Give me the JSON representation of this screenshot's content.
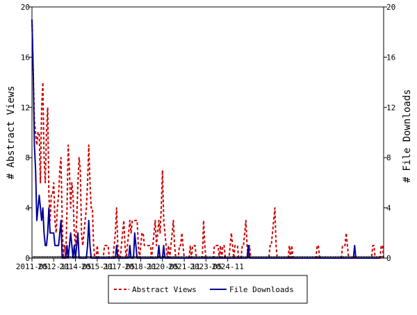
{
  "chart_data": {
    "type": "line",
    "title": "",
    "xlabel": "",
    "ylabel": "# Abstract Views",
    "y2label": "# File Downloads",
    "ylim": [
      0,
      20
    ],
    "y2lim": [
      0,
      20
    ],
    "yticks": [
      0,
      4,
      8,
      12,
      16,
      20
    ],
    "y2ticks": [
      0,
      4,
      8,
      12,
      16,
      20
    ],
    "x_tick_labels": [
      "2011-05",
      "2012-11",
      "2014-05",
      "2015-11",
      "2017-05",
      "2018-11",
      "2020-05",
      "2021-11",
      "2023-05",
      "2024-11"
    ],
    "x_start": "2011-05",
    "x_end": "2025-09",
    "grid": false,
    "legend_position": "bottom",
    "colors": {
      "abstract_views": "#cc0000",
      "file_downloads": "#000099"
    },
    "series": [
      {
        "name": "Abstract Views",
        "axis": "left",
        "style": "dashed",
        "values": [
          19,
          15,
          11,
          10,
          9,
          10,
          10,
          6,
          12,
          14,
          8,
          6,
          10,
          12,
          5,
          3,
          5,
          5,
          6,
          3,
          2,
          4,
          5,
          7,
          8,
          3,
          0,
          1,
          0,
          4,
          9,
          7,
          4,
          6,
          5,
          2,
          1,
          3,
          6,
          8,
          7,
          2,
          1,
          2,
          3,
          4,
          6,
          9,
          6,
          4,
          4,
          1,
          0,
          0,
          1,
          0,
          0,
          0,
          0,
          0,
          1,
          1,
          1,
          1,
          0,
          0,
          0,
          0,
          1,
          2,
          4,
          1,
          0,
          0,
          1,
          2,
          3,
          1,
          0,
          1,
          2,
          3,
          2,
          3,
          3,
          3,
          3,
          3,
          1,
          0,
          1,
          2,
          2,
          1,
          1,
          1,
          1,
          1,
          1,
          0,
          1,
          2,
          3,
          1,
          2,
          3,
          2,
          4,
          7,
          3,
          2,
          1,
          0,
          1,
          0,
          1,
          2,
          3,
          1,
          0,
          0,
          0,
          1,
          1,
          2,
          1,
          0,
          0,
          0,
          0,
          0,
          1,
          0,
          1,
          1,
          1,
          0,
          0,
          0,
          0,
          0,
          0,
          3,
          1,
          0,
          0,
          0,
          0,
          0,
          0,
          0,
          1,
          1,
          1,
          1,
          0,
          1,
          0,
          1,
          1,
          0,
          0,
          0,
          0,
          1,
          2,
          1,
          0,
          1,
          1,
          1,
          0,
          0,
          0,
          1,
          1,
          2,
          3,
          1,
          0,
          1,
          0,
          0,
          0,
          0,
          0,
          0,
          0,
          0,
          0,
          0,
          0,
          0,
          0,
          0,
          0,
          0,
          1,
          1,
          2,
          3,
          4,
          1,
          0,
          0,
          0,
          0,
          0,
          0,
          0,
          0,
          0,
          0,
          1,
          0,
          1,
          0,
          0,
          0,
          0,
          0,
          0,
          0,
          0,
          0,
          0,
          0,
          0,
          0,
          0,
          0,
          0,
          0,
          0,
          0,
          0,
          1,
          1,
          0,
          0,
          0,
          0,
          0,
          0,
          0,
          0,
          0,
          0,
          0,
          0,
          0,
          0,
          0,
          0,
          0,
          0,
          0,
          1,
          1,
          1,
          2,
          1,
          0,
          0,
          0,
          0,
          0,
          0,
          0,
          0,
          0,
          0,
          0,
          0,
          0,
          0,
          0,
          0,
          0,
          0,
          0,
          0,
          1,
          1,
          0,
          0,
          0,
          0,
          0,
          1,
          1,
          0
        ]
      },
      {
        "name": "File Downloads",
        "axis": "right",
        "style": "solid",
        "values": [
          19,
          15,
          9,
          7,
          3,
          4,
          5,
          4,
          3,
          4,
          2,
          1,
          1,
          2,
          4,
          2,
          2,
          2,
          2,
          1,
          1,
          1,
          1,
          2,
          3,
          0,
          0,
          0,
          0,
          1,
          0,
          1,
          2,
          1,
          0,
          1,
          0,
          1,
          2,
          0,
          0,
          0,
          0,
          0,
          0,
          0,
          1,
          3,
          1,
          0,
          0,
          0,
          0,
          0,
          0,
          0,
          0,
          0,
          0,
          0,
          0,
          0,
          0,
          0,
          0,
          0,
          0,
          0,
          0,
          0,
          1,
          0,
          0,
          0,
          0,
          0,
          0,
          0,
          0,
          0,
          0,
          1,
          0,
          0,
          0,
          2,
          1,
          0,
          0,
          0,
          0,
          0,
          0,
          0,
          0,
          0,
          0,
          0,
          0,
          0,
          0,
          0,
          0,
          0,
          0,
          1,
          0,
          0,
          0,
          1,
          0,
          0,
          0,
          0,
          0,
          0,
          0,
          0,
          0,
          0,
          0,
          0,
          0,
          0,
          0,
          0,
          0,
          0,
          0,
          0,
          0,
          0,
          0,
          0,
          0,
          0,
          0,
          0,
          0,
          0,
          0,
          0,
          0,
          0,
          0,
          0,
          0,
          0,
          0,
          0,
          0,
          0,
          0,
          0,
          0,
          0,
          0,
          0,
          0,
          0,
          0,
          0,
          0,
          0,
          0,
          0,
          0,
          0,
          0,
          0,
          0,
          0,
          0,
          0,
          0,
          0,
          0,
          0,
          0,
          1,
          0,
          0,
          0,
          0,
          0,
          0,
          0,
          0,
          0,
          0,
          0,
          0,
          0,
          0,
          0,
          0,
          0,
          0,
          0,
          0,
          0,
          0,
          0,
          0,
          0,
          0,
          0,
          0,
          0,
          0,
          0,
          0,
          0,
          0,
          0,
          0,
          0,
          0,
          0,
          0,
          0,
          0,
          0,
          0,
          0,
          0,
          0,
          0,
          0,
          0,
          0,
          0,
          0,
          0,
          0,
          0,
          0,
          0,
          0,
          0,
          0,
          0,
          0,
          0,
          0,
          0,
          0,
          0,
          0,
          0,
          0,
          0,
          0,
          0,
          0,
          0,
          0,
          0,
          0,
          0,
          0,
          0,
          0,
          0,
          0,
          0,
          0,
          1,
          0,
          0,
          0,
          0,
          0,
          0,
          0,
          0,
          0,
          0,
          0,
          0,
          0,
          0,
          0,
          0,
          0,
          0,
          0,
          0,
          0
        ]
      }
    ]
  }
}
